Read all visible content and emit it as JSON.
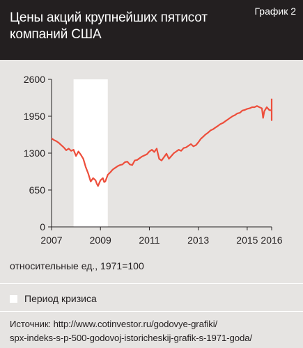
{
  "header": {
    "title": "Цены акций крупнейших пятисот компаний США",
    "chart_label": "График 2"
  },
  "unit_note": "относительные ед., 1971=100",
  "legend": {
    "crisis_label": "Период кризиса"
  },
  "source": {
    "line1": "Источник: http://www.cotinvestor.ru/godovye-grafiki/",
    "line2": "spx-indeks-s-p-500-godovoj-istoricheskij-grafik-s-1971-goda/"
  },
  "colors": {
    "series": "#ed4e3b",
    "crisis_band": "#ffffff",
    "header_bg": "#231f20",
    "background": "#e6e4e2"
  },
  "chart_data": {
    "type": "line",
    "title": "Цены акций крупнейших пятисот компаний США",
    "xlabel": "",
    "ylabel": "относительные ед., 1971=100",
    "xlim": [
      2007,
      2016
    ],
    "ylim": [
      0,
      2600
    ],
    "x_ticks": [
      2007,
      2009,
      2011,
      2013,
      2015,
      2016
    ],
    "y_ticks": [
      0,
      650,
      1300,
      1950,
      2600
    ],
    "grid": false,
    "shaded_region": {
      "label": "Период кризиса",
      "x": [
        2007.9,
        2009.3
      ]
    },
    "series": [
      {
        "x": [
          2007.0,
          2007.1,
          2007.2,
          2007.3,
          2007.4,
          2007.5,
          2007.6,
          2007.7,
          2007.8,
          2007.9,
          2008.0,
          2008.1,
          2008.2,
          2008.3,
          2008.4,
          2008.5,
          2008.6,
          2008.7,
          2008.8,
          2008.85,
          2008.9,
          2009.0,
          2009.1,
          2009.15,
          2009.2,
          2009.3,
          2009.4,
          2009.5,
          2009.6,
          2009.7,
          2009.8,
          2009.9,
          2010.0,
          2010.1,
          2010.2,
          2010.3,
          2010.4,
          2010.5,
          2010.6,
          2010.7,
          2010.8,
          2010.9,
          2011.0,
          2011.1,
          2011.2,
          2011.3,
          2011.4,
          2011.5,
          2011.6,
          2011.7,
          2011.8,
          2011.9,
          2012.0,
          2012.1,
          2012.2,
          2012.3,
          2012.4,
          2012.5,
          2012.6,
          2012.7,
          2012.8,
          2012.9,
          2013.0,
          2013.1,
          2013.2,
          2013.3,
          2013.4,
          2013.5,
          2013.6,
          2013.7,
          2013.8,
          2013.9,
          2014.0,
          2014.1,
          2014.2,
          2014.3,
          2014.4,
          2014.5,
          2014.6,
          2014.7,
          2014.8,
          2014.9,
          2015.0,
          2015.1,
          2015.2,
          2015.3,
          2015.4,
          2015.5,
          2015.6,
          2015.65,
          2015.7,
          2015.8,
          2015.9,
          2016.0,
          2016.05,
          2016.1,
          2016.2,
          2016.3,
          2016.4,
          2016.5,
          2016.6,
          2016.7,
          2016.8,
          2016.9,
          2016.95,
          2017.0
        ],
        "y": [
          1560,
          1530,
          1510,
          1480,
          1440,
          1400,
          1350,
          1380,
          1340,
          1360,
          1250,
          1330,
          1270,
          1200,
          1050,
          940,
          800,
          860,
          820,
          760,
          720,
          820,
          860,
          790,
          800,
          920,
          960,
          1010,
          1040,
          1070,
          1090,
          1100,
          1140,
          1150,
          1100,
          1090,
          1170,
          1180,
          1210,
          1240,
          1260,
          1280,
          1330,
          1360,
          1320,
          1380,
          1200,
          1170,
          1230,
          1290,
          1200,
          1250,
          1300,
          1330,
          1360,
          1340,
          1390,
          1400,
          1430,
          1460,
          1420,
          1440,
          1490,
          1550,
          1590,
          1630,
          1660,
          1700,
          1720,
          1750,
          1780,
          1810,
          1830,
          1860,
          1890,
          1920,
          1950,
          1970,
          2000,
          2010,
          2050,
          2060,
          2080,
          2090,
          2110,
          2110,
          2130,
          2110,
          2090,
          1920,
          2040,
          2110,
          2060,
          2050,
          1880,
          1950,
          2060,
          2090,
          2100,
          2140,
          2160,
          2180,
          2190,
          2170,
          2230,
          2260
        ]
      }
    ]
  }
}
